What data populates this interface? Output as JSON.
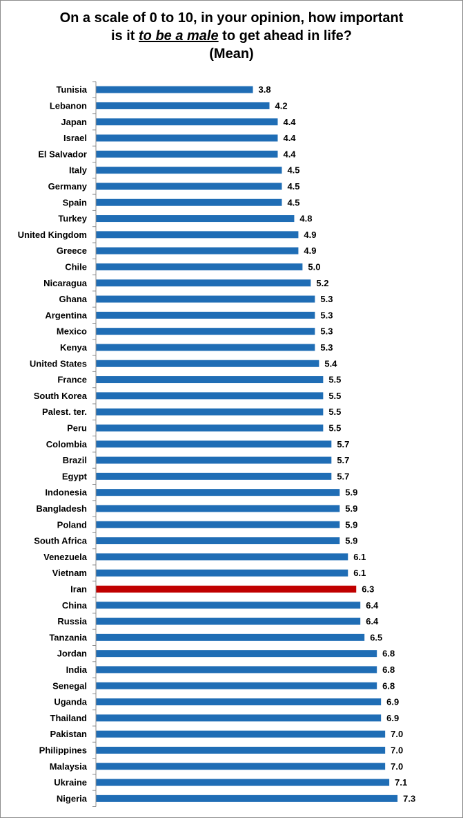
{
  "chart_data": {
    "type": "bar",
    "orientation": "horizontal",
    "title_line1": "On a scale of 0 to 10, in your opinion, how important",
    "title_line2_prefix": "is it ",
    "title_line2_emphasis": "to be a male",
    "title_line2_suffix": " to get ahead in life?",
    "title_line3": "(Mean)",
    "xlim": [
      0,
      8.3
    ],
    "highlight_category": "Iran",
    "colors": {
      "bar": "#1f6db5",
      "highlight": "#c00000",
      "axis": "#8c8c8c"
    },
    "categories": [
      "Tunisia",
      "Lebanon",
      "Japan",
      "Israel",
      "El Salvador",
      "Italy",
      "Germany",
      "Spain",
      "Turkey",
      "United Kingdom",
      "Greece",
      "Chile",
      "Nicaragua",
      "Ghana",
      "Argentina",
      "Mexico",
      "Kenya",
      "United States",
      "France",
      "South Korea",
      "Palest. ter.",
      "Peru",
      "Colombia",
      "Brazil",
      "Egypt",
      "Indonesia",
      "Bangladesh",
      "Poland",
      "South Africa",
      "Venezuela",
      "Vietnam",
      "Iran",
      "China",
      "Russia",
      "Tanzania",
      "Jordan",
      "India",
      "Senegal",
      "Uganda",
      "Thailand",
      "Pakistan",
      "Philippines",
      "Malaysia",
      "Ukraine",
      "Nigeria"
    ],
    "values": [
      3.8,
      4.2,
      4.4,
      4.4,
      4.4,
      4.5,
      4.5,
      4.5,
      4.8,
      4.9,
      4.9,
      5.0,
      5.2,
      5.3,
      5.3,
      5.3,
      5.3,
      5.4,
      5.5,
      5.5,
      5.5,
      5.5,
      5.7,
      5.7,
      5.7,
      5.9,
      5.9,
      5.9,
      5.9,
      6.1,
      6.1,
      6.3,
      6.4,
      6.4,
      6.5,
      6.8,
      6.8,
      6.8,
      6.9,
      6.9,
      7.0,
      7.0,
      7.0,
      7.1,
      7.3
    ],
    "value_labels": [
      "3.8",
      "4.2",
      "4.4",
      "4.4",
      "4.4",
      "4.5",
      "4.5",
      "4.5",
      "4.8",
      "4.9",
      "4.9",
      "5.0",
      "5.2",
      "5.3",
      "5.3",
      "5.3",
      "5.3",
      "5.4",
      "5.5",
      "5.5",
      "5.5",
      "5.5",
      "5.7",
      "5.7",
      "5.7",
      "5.9",
      "5.9",
      "5.9",
      "5.9",
      "6.1",
      "6.1",
      "6.3",
      "6.4",
      "6.4",
      "6.5",
      "6.8",
      "6.8",
      "6.8",
      "6.9",
      "6.9",
      "7.0",
      "7.0",
      "7.0",
      "7.1",
      "7.3"
    ]
  }
}
